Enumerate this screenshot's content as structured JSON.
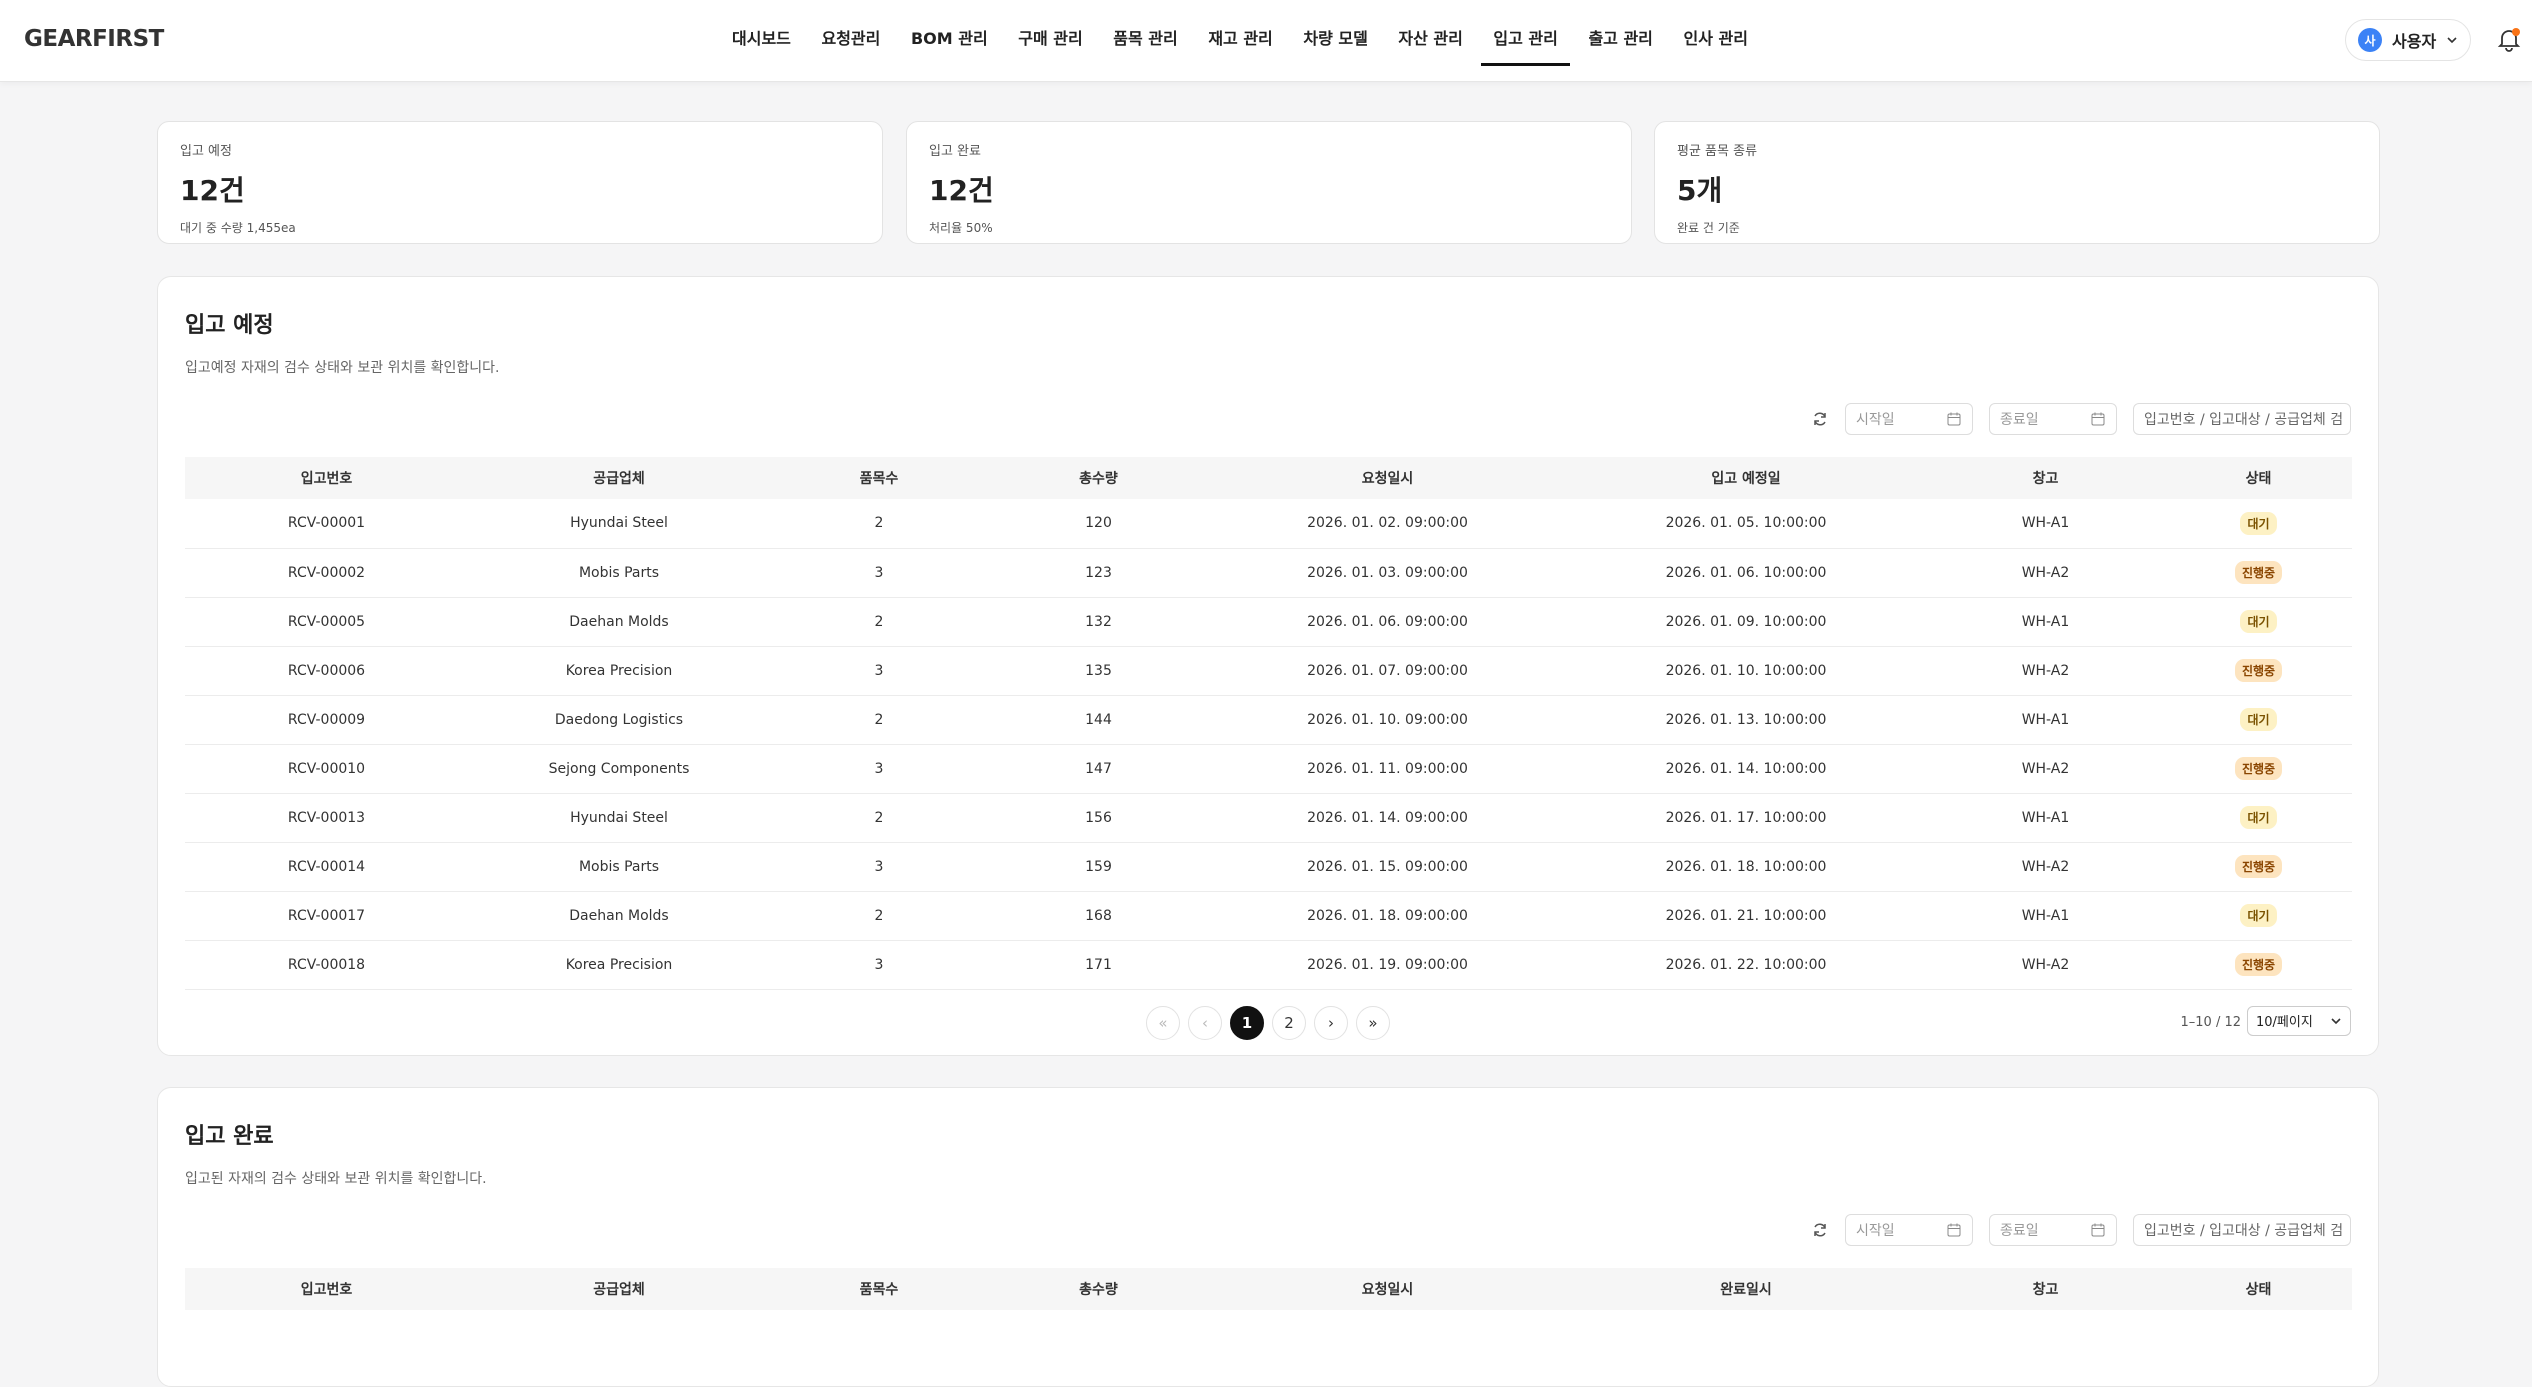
{
  "header": {
    "logo": "GEARFIRST",
    "nav": [
      "대시보드",
      "요청관리",
      "BOM 관리",
      "구매 관리",
      "품목 관리",
      "재고 관리",
      "차량 모델",
      "자산 관리",
      "입고 관리",
      "출고 관리",
      "인사 관리"
    ],
    "active_index": 8,
    "avatar": "사",
    "user": "사용자"
  },
  "cards": [
    {
      "label": "입고 예정",
      "value": "12건",
      "note": "대기 중 수량 1,455ea"
    },
    {
      "label": "입고 완료",
      "value": "12건",
      "note": "처리율 50%"
    },
    {
      "label": "평균 품목 종류",
      "value": "5개",
      "note": "완료 건 기준"
    }
  ],
  "sections": [
    {
      "title": "입고 예정",
      "subtitle": "입고예정 자재의 검수 상태와 보관 위치를 확인합니다.",
      "start_placeholder": "시작일",
      "end_placeholder": "종료일",
      "search_placeholder": "입고번호 / 입고대상 / 공급업체 검",
      "columns": [
        "입고번호",
        "공급업체",
        "품목수",
        "총수량",
        "요청일시",
        "입고 예정일",
        "창고",
        "상태"
      ],
      "rows": [
        [
          "RCV-00001",
          "Hyundai Steel",
          2,
          120,
          "2026. 01. 02. 09:00:00",
          "2026. 01. 05. 10:00:00",
          "WH-A1",
          "대기"
        ],
        [
          "RCV-00002",
          "Mobis Parts",
          3,
          123,
          "2026. 01. 03. 09:00:00",
          "2026. 01. 06. 10:00:00",
          "WH-A2",
          "진행중"
        ],
        [
          "RCV-00005",
          "Daehan Molds",
          2,
          132,
          "2026. 01. 06. 09:00:00",
          "2026. 01. 09. 10:00:00",
          "WH-A1",
          "대기"
        ],
        [
          "RCV-00006",
          "Korea Precision",
          3,
          135,
          "2026. 01. 07. 09:00:00",
          "2026. 01. 10. 10:00:00",
          "WH-A2",
          "진행중"
        ],
        [
          "RCV-00009",
          "Daedong Logistics",
          2,
          144,
          "2026. 01. 10. 09:00:00",
          "2026. 01. 13. 10:00:00",
          "WH-A1",
          "대기"
        ],
        [
          "RCV-00010",
          "Sejong Components",
          3,
          147,
          "2026. 01. 11. 09:00:00",
          "2026. 01. 14. 10:00:00",
          "WH-A2",
          "진행중"
        ],
        [
          "RCV-00013",
          "Hyundai Steel",
          2,
          156,
          "2026. 01. 14. 09:00:00",
          "2026. 01. 17. 10:00:00",
          "WH-A1",
          "대기"
        ],
        [
          "RCV-00014",
          "Mobis Parts",
          3,
          159,
          "2026. 01. 15. 09:00:00",
          "2026. 01. 18. 10:00:00",
          "WH-A2",
          "진행중"
        ],
        [
          "RCV-00017",
          "Daehan Molds",
          2,
          168,
          "2026. 01. 18. 09:00:00",
          "2026. 01. 21. 10:00:00",
          "WH-A1",
          "대기"
        ],
        [
          "RCV-00018",
          "Korea Precision",
          3,
          171,
          "2026. 01. 19. 09:00:00",
          "2026. 01. 22. 10:00:00",
          "WH-A2",
          "진행중"
        ]
      ],
      "pagination": {
        "first": "«",
        "prev": "‹",
        "pages": [
          "1",
          "2"
        ],
        "active_index": 0,
        "next": "›",
        "last": "»",
        "range": "1–10 / 12",
        "page_size": "10/페이지"
      }
    },
    {
      "title": "입고 완료",
      "subtitle": "입고된 자재의 검수 상태와 보관 위치를 확인합니다.",
      "start_placeholder": "시작일",
      "end_placeholder": "종료일",
      "search_placeholder": "입고번호 / 입고대상 / 공급업체 검",
      "columns": [
        "입고번호",
        "공급업체",
        "품목수",
        "총수량",
        "요청일시",
        "완료일시",
        "창고",
        "상태"
      ],
      "rows": []
    }
  ]
}
